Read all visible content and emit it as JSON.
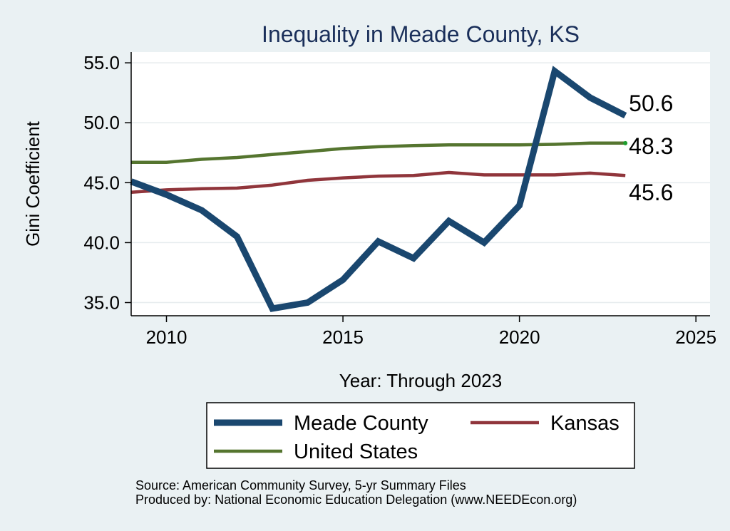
{
  "chart_data": {
    "type": "line",
    "title": "Inequality in Meade County, KS",
    "xlabel": "Year: Through 2023",
    "ylabel": "Gini Coefficient",
    "xlim": [
      2009,
      2025.4
    ],
    "ylim": [
      33.9,
      55.9
    ],
    "xticks": [
      "2010",
      "2015",
      "2020",
      "2025"
    ],
    "yticks": [
      "35.0",
      "40.0",
      "45.0",
      "50.0",
      "55.0"
    ],
    "x": [
      2009,
      2010,
      2011,
      2012,
      2013,
      2014,
      2015,
      2016,
      2017,
      2018,
      2019,
      2020,
      2021,
      2022,
      2023
    ],
    "series": [
      {
        "name": "Meade County",
        "color": "#1a476f",
        "values": [
          45.1,
          44.0,
          42.7,
          40.5,
          34.5,
          35.0,
          36.9,
          40.1,
          38.7,
          41.8,
          40.0,
          43.1,
          54.3,
          52.1,
          50.6
        ],
        "end_label": "50.6"
      },
      {
        "name": "Kansas",
        "color": "#90353b",
        "values": [
          44.2,
          44.4,
          44.5,
          44.55,
          44.8,
          45.2,
          45.4,
          45.55,
          45.6,
          45.85,
          45.65,
          45.65,
          45.65,
          45.8,
          45.6
        ],
        "end_label": "45.6"
      },
      {
        "name": "United States",
        "color": "#55752f",
        "values": [
          46.7,
          46.7,
          46.95,
          47.1,
          47.35,
          47.6,
          47.85,
          48.0,
          48.1,
          48.15,
          48.15,
          48.15,
          48.2,
          48.3,
          48.3
        ],
        "end_label": "48.3"
      }
    ],
    "grid": true,
    "legend_position": "bottom"
  },
  "source_lines": [
    "Source: American Community Survey, 5-yr Summary Files",
    "Produced by: National Economic Education Delegation (www.NEEDEcon.org)"
  ]
}
